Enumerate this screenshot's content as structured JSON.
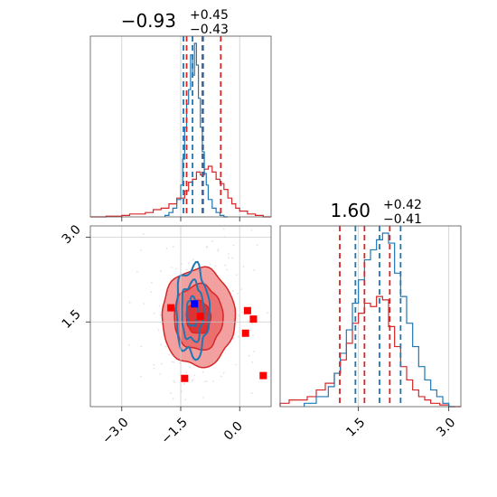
{
  "figure": {
    "type": "corner-plot",
    "colors": {
      "red": "#d62728",
      "blue": "#1f77b4",
      "red_fill_light": "#f2a0a0",
      "red_fill_dark": "#dd3333",
      "scatter": "#c8c8d8",
      "marker_blue": "#0000ff",
      "marker_red": "#ff0000"
    }
  },
  "chart_data": [
    {
      "type": "histogram",
      "panel": "top-left",
      "title_value": "−0.93",
      "title_sup": "+0.45",
      "title_sub": "−0.43",
      "xlim": [
        -3.8,
        0.8
      ],
      "x_ticks": [
        -3.0,
        -1.5,
        0.0
      ],
      "show_tick_labels": false,
      "quantiles_red": [
        -1.35,
        -0.93,
        -0.48
      ],
      "quantiles_blue": [
        -1.43,
        -1.2,
        -0.95
      ],
      "series": [
        {
          "name": "red",
          "color": "#d62728",
          "bin_edges": [
            -3.8,
            -3.4,
            -3.0,
            -2.8,
            -2.6,
            -2.4,
            -2.2,
            -2.0,
            -1.8,
            -1.6,
            -1.4,
            -1.3,
            -1.2,
            -1.1,
            -1.0,
            -0.9,
            -0.8,
            -0.7,
            -0.6,
            -0.5,
            -0.4,
            -0.3,
            -0.2,
            -0.1,
            0.0,
            0.2,
            0.4,
            0.6,
            0.8
          ],
          "counts": [
            0,
            0.5,
            1,
            2,
            2,
            3,
            5,
            6,
            9,
            13,
            18,
            24,
            26,
            31,
            29,
            33,
            35,
            31,
            26,
            23,
            19,
            13,
            9,
            6,
            4,
            2,
            1,
            0
          ]
        },
        {
          "name": "blue",
          "color": "#1f77b4",
          "bin_edges": [
            -1.9,
            -1.8,
            -1.7,
            -1.6,
            -1.5,
            -1.45,
            -1.4,
            -1.35,
            -1.3,
            -1.25,
            -1.2,
            -1.15,
            -1.1,
            -1.05,
            -1.0,
            -0.95,
            -0.9,
            -0.85,
            -0.8,
            -0.7,
            -0.6,
            -0.5,
            -0.4,
            -0.3
          ],
          "counts": [
            1,
            3,
            6,
            12,
            22,
            40,
            62,
            78,
            88,
            112,
            98,
            120,
            105,
            82,
            62,
            45,
            30,
            22,
            12,
            6,
            3,
            1,
            0
          ]
        }
      ]
    },
    {
      "type": "contour",
      "panel": "bottom-left",
      "xlim": [
        -3.8,
        0.8
      ],
      "ylim": [
        0.0,
        3.2
      ],
      "x_ticks": [
        -3.0,
        -1.5,
        0.0
      ],
      "x_tick_labels": [
        "−3.0",
        "−1.5",
        "0.0"
      ],
      "y_ticks": [
        1.5,
        3.0
      ],
      "y_tick_labels": [
        "1.5",
        "3.0"
      ],
      "reference_point": [
        -1.45,
        1.45
      ],
      "red_markers": [
        [
          -1.75,
          1.75
        ],
        [
          -1.4,
          0.5
        ],
        [
          -1.0,
          1.6
        ],
        [
          0.2,
          1.7
        ],
        [
          0.35,
          1.55
        ],
        [
          0.15,
          1.3
        ],
        [
          0.6,
          0.55
        ]
      ],
      "blue_marker": [
        -1.15,
        1.82
      ],
      "red_density": {
        "center": [
          -1.05,
          1.58
        ],
        "sigma": [
          0.62,
          0.58
        ],
        "levels": [
          0.5,
          1.0,
          1.5
        ]
      },
      "blue_density": {
        "center": [
          -1.2,
          1.68
        ],
        "sigma": [
          0.28,
          0.52
        ],
        "levels": [
          0.5,
          1.0,
          1.5
        ]
      }
    },
    {
      "type": "histogram",
      "panel": "bottom-right",
      "title_value": "1.60",
      "title_sup": "+0.42",
      "title_sub": "−0.41",
      "xlim": [
        0.2,
        3.2
      ],
      "x_ticks": [
        1.5,
        3.0
      ],
      "x_tick_labels": [
        "1.5",
        "3.0"
      ],
      "quantiles_red": [
        1.19,
        1.6,
        2.02
      ],
      "quantiles_blue": [
        1.45,
        1.85,
        2.2
      ],
      "series": [
        {
          "name": "red",
          "color": "#d62728",
          "bin_edges": [
            0.2,
            0.35,
            0.5,
            0.65,
            0.8,
            0.95,
            1.1,
            1.2,
            1.3,
            1.4,
            1.5,
            1.6,
            1.7,
            1.8,
            1.9,
            2.0,
            2.1,
            2.2,
            2.3,
            2.4,
            2.5,
            2.6,
            2.7,
            2.85,
            3.0,
            3.2
          ],
          "counts": [
            1,
            2,
            2,
            3,
            5,
            7,
            10,
            14,
            19,
            25,
            28,
            31,
            30,
            33,
            32,
            24,
            18,
            12,
            8,
            5,
            3,
            2,
            1,
            0.5,
            0
          ]
        },
        {
          "name": "blue",
          "color": "#1f77b4",
          "bin_edges": [
            0.6,
            0.8,
            1.0,
            1.1,
            1.2,
            1.3,
            1.4,
            1.5,
            1.6,
            1.7,
            1.8,
            1.9,
            2.0,
            2.1,
            2.2,
            2.3,
            2.4,
            2.5,
            2.6,
            2.7,
            2.8,
            2.9,
            3.0,
            3.1
          ],
          "counts": [
            1,
            3,
            6,
            10,
            16,
            23,
            31,
            38,
            44,
            47,
            50,
            52,
            49,
            40,
            33,
            25,
            18,
            12,
            8,
            5,
            3,
            1,
            0
          ]
        }
      ]
    }
  ]
}
